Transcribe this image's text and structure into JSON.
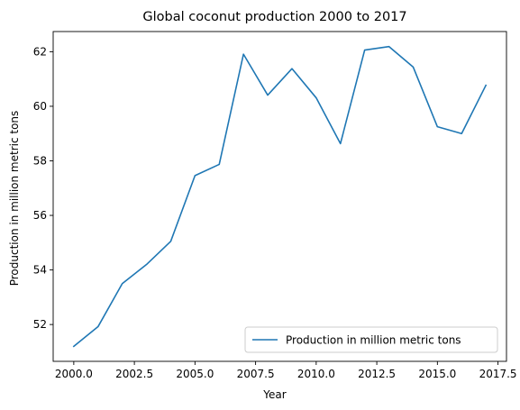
{
  "chart_data": {
    "type": "line",
    "title": "Global coconut production 2000 to 2017",
    "xlabel": "Year",
    "ylabel": "Production in million metric tons",
    "x": [
      2000,
      2001,
      2002,
      2003,
      2004,
      2005,
      2006,
      2007,
      2008,
      2009,
      2010,
      2011,
      2012,
      2013,
      2014,
      2015,
      2016,
      2017
    ],
    "series": [
      {
        "name": "Production in million metric tons",
        "color": "#1f77b4",
        "values": [
          51.2,
          51.92,
          53.5,
          54.2,
          55.05,
          57.46,
          57.87,
          61.91,
          60.41,
          61.38,
          60.31,
          58.63,
          62.06,
          62.19,
          61.44,
          59.25,
          59.0,
          60.77
        ]
      }
    ],
    "xlim": [
      1999.15,
      2017.85
    ],
    "ylim": [
      50.65,
      62.74
    ],
    "xticks": [
      {
        "value": 2000,
        "label": "2000.0"
      },
      {
        "value": 2002.5,
        "label": "2002.5"
      },
      {
        "value": 2005,
        "label": "2005.0"
      },
      {
        "value": 2007.5,
        "label": "2007.5"
      },
      {
        "value": 2010,
        "label": "2010.0"
      },
      {
        "value": 2012.5,
        "label": "2012.5"
      },
      {
        "value": 2015,
        "label": "2015.0"
      },
      {
        "value": 2017.5,
        "label": "2017.5"
      }
    ],
    "yticks": [
      {
        "value": 52,
        "label": "52"
      },
      {
        "value": 54,
        "label": "54"
      },
      {
        "value": 56,
        "label": "56"
      },
      {
        "value": 58,
        "label": "58"
      },
      {
        "value": 60,
        "label": "60"
      },
      {
        "value": 62,
        "label": "62"
      }
    ],
    "grid": false,
    "legend_position": "bottom-right"
  }
}
